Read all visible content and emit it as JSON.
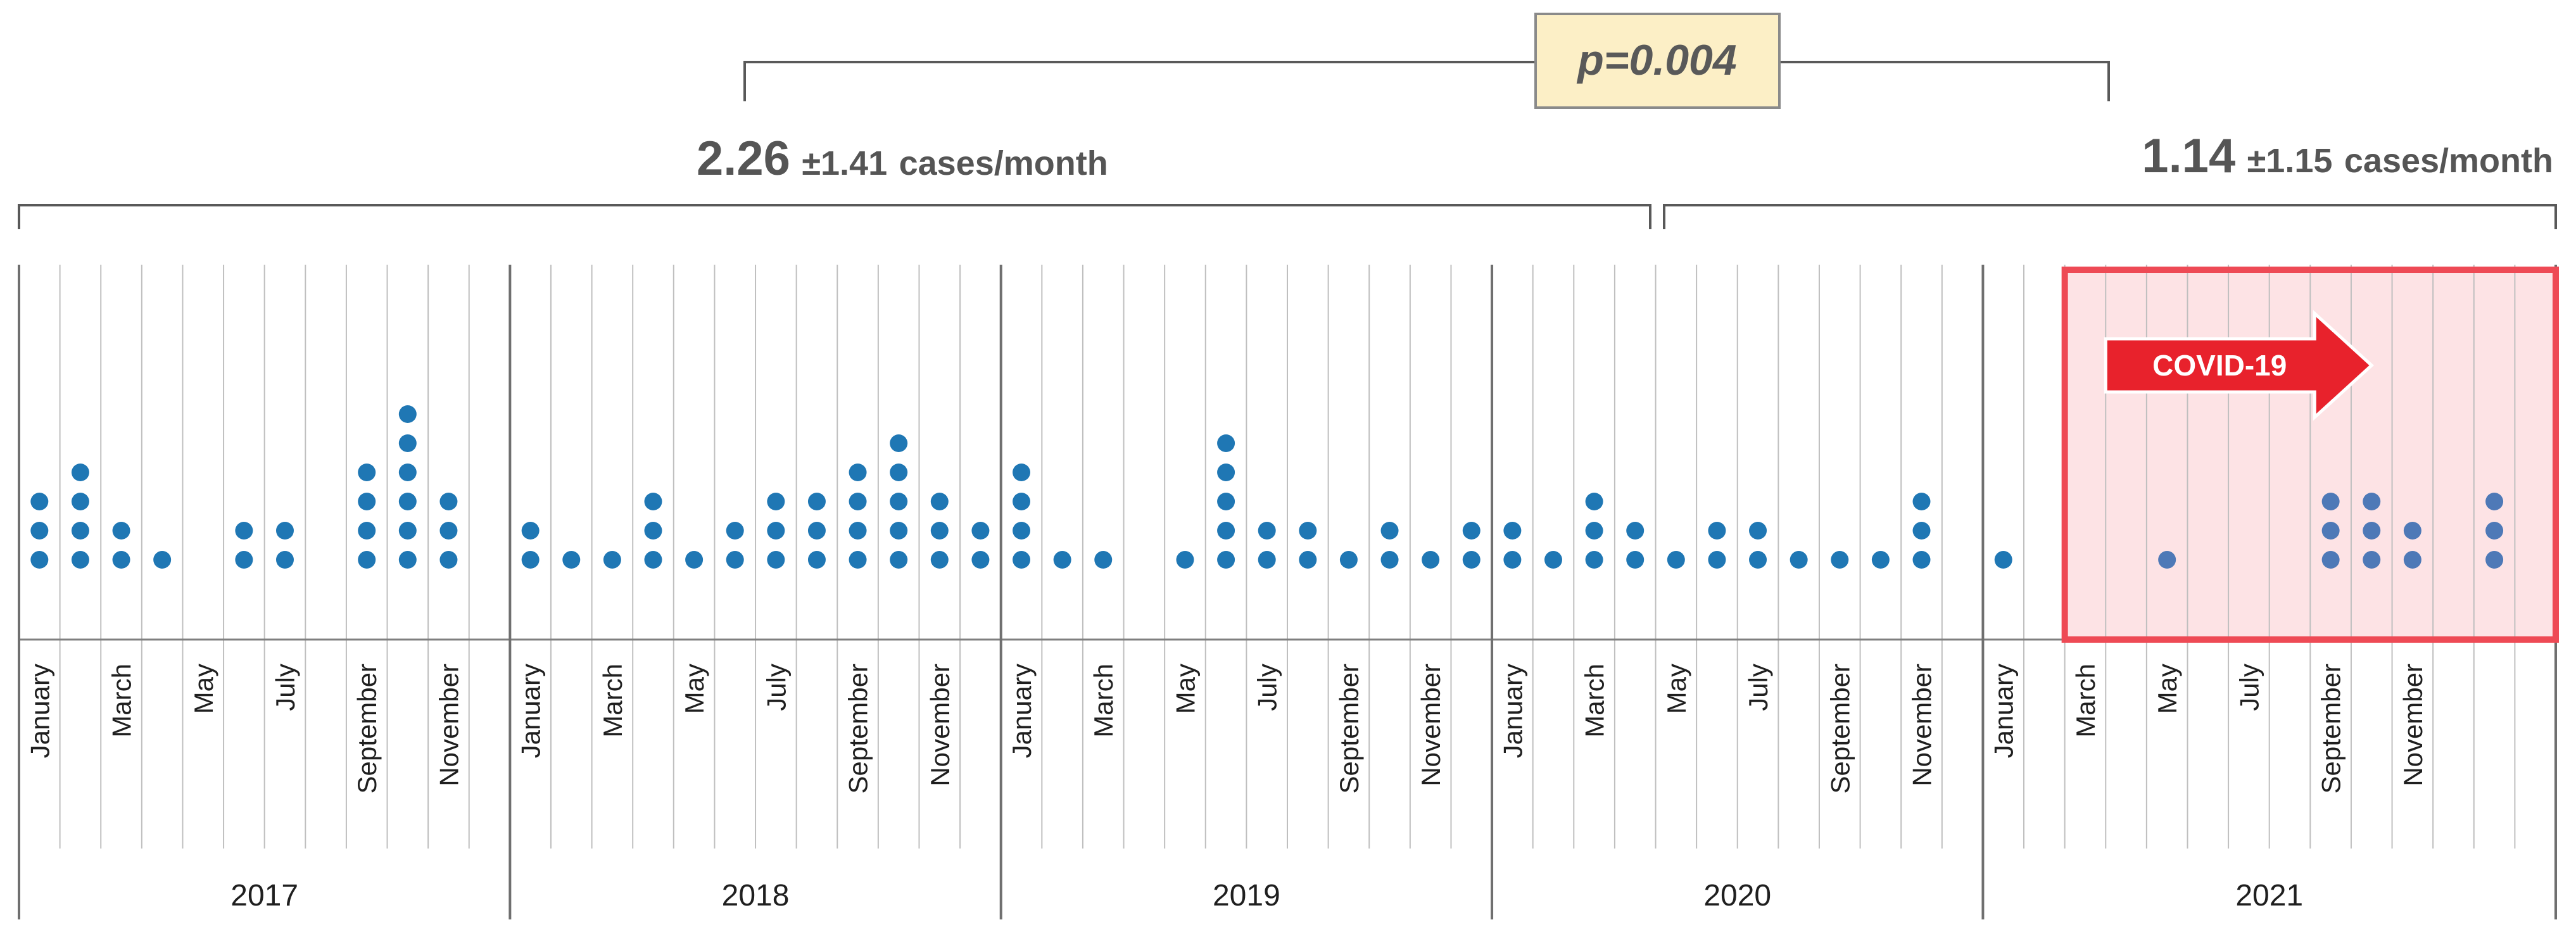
{
  "chart_data": {
    "type": "dot",
    "title": "",
    "xlabel": "",
    "ylabel": "",
    "y_unit": "cases",
    "years": [
      "2017",
      "2018",
      "2019",
      "2020",
      "2021"
    ],
    "month_tick_labels": [
      "January",
      "March",
      "May",
      "July",
      "September",
      "November"
    ],
    "series": [
      {
        "name": "cases per month",
        "color": "#1F77B4",
        "values": [
          3,
          4,
          2,
          1,
          0,
          2,
          2,
          0,
          4,
          6,
          3,
          0,
          2,
          1,
          1,
          3,
          1,
          2,
          3,
          3,
          4,
          5,
          3,
          2,
          4,
          1,
          1,
          0,
          1,
          5,
          2,
          2,
          1,
          2,
          1,
          2,
          2,
          1,
          3,
          2,
          1,
          2,
          2,
          1,
          1,
          1,
          3,
          0,
          1,
          0,
          0,
          0,
          1,
          0,
          0,
          0,
          3,
          3,
          2,
          0,
          3,
          0
        ]
      }
    ],
    "annotations": {
      "pre_covid": {
        "mean": "2.26",
        "sd": "±1.41",
        "unit": "cases/month"
      },
      "covid": {
        "mean": "1.14",
        "sd": "±1.15",
        "unit": "cases/month"
      },
      "p_value": "p=0.004",
      "covid_label": "COVID-19"
    },
    "colors": {
      "dot": "#1F77B4",
      "covid_border": "#EE4A55",
      "covid_fill": "#FDE3E5",
      "arrow_fill": "#E8222C",
      "pbox_fill": "#FCEFC6",
      "pbox_border": "#8A8A8A",
      "grid": "#BFBFBF",
      "bracket": "#595959"
    }
  }
}
